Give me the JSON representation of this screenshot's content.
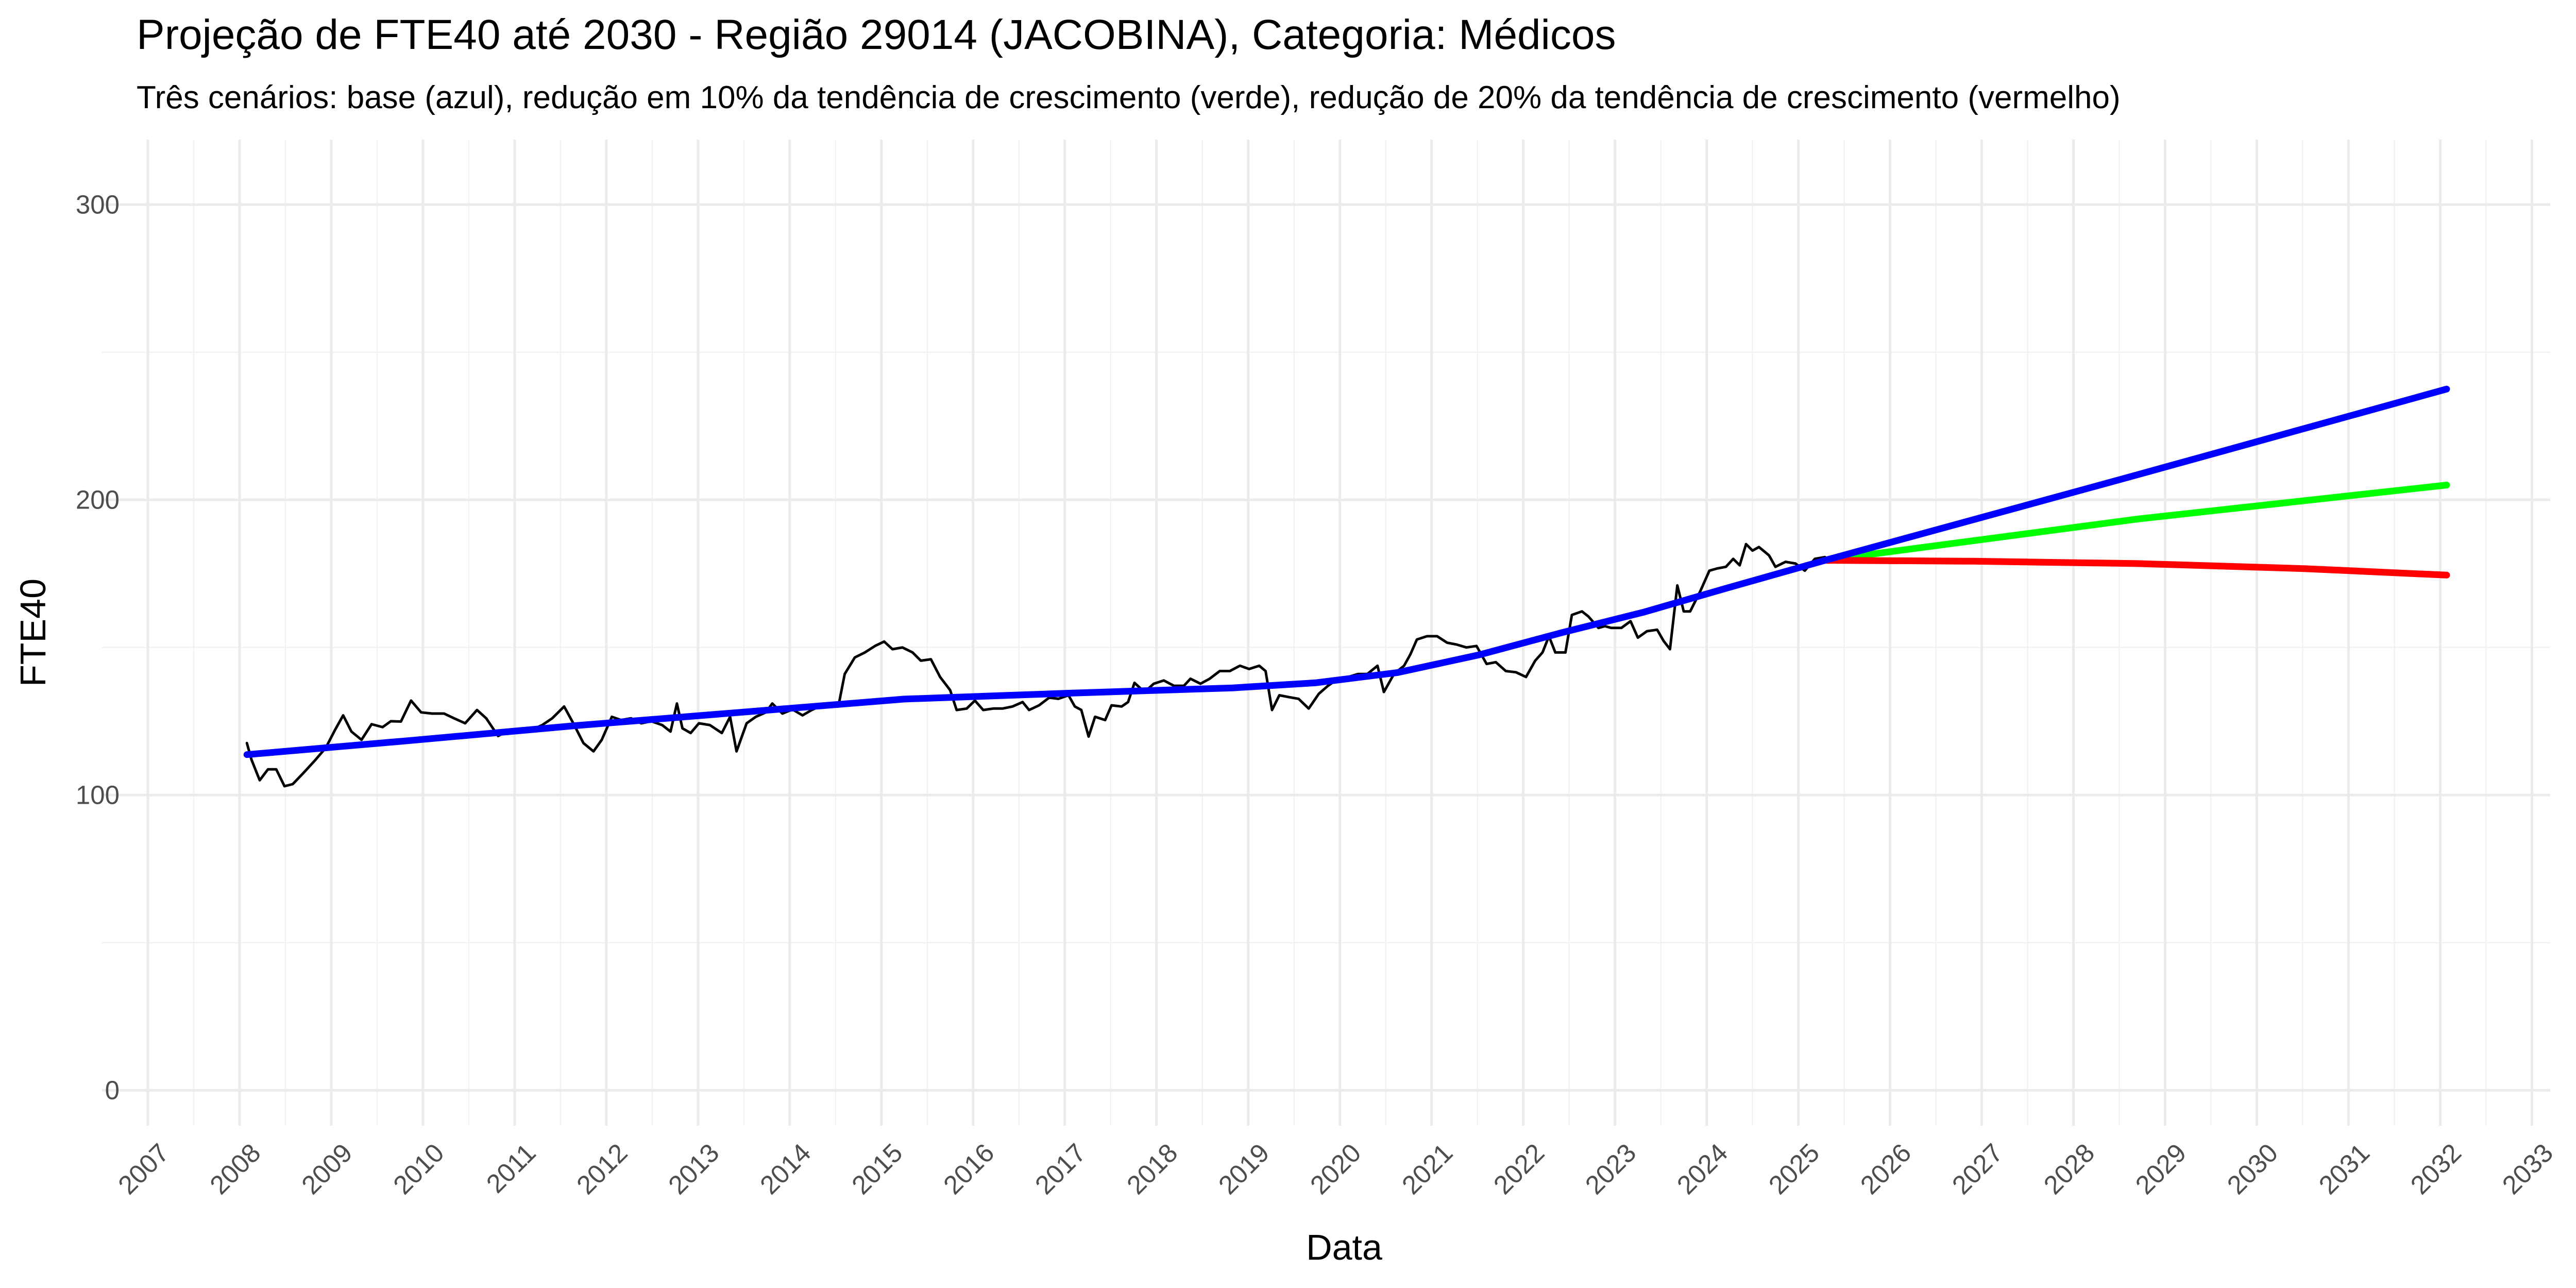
{
  "chart_data": {
    "type": "line",
    "title": "Projeção de FTE40 até 2030 - Região 29014 (JACOBINA), Categoria: Médicos",
    "subtitle": "Três cenários: base (azul), redução em 10% da tendência de crescimento (verde), redução de 20% da tendência de crescimento (vermelho)",
    "x_label": "Data",
    "y_label": "FTE40",
    "xlim": [
      2006.5,
      2033.2
    ],
    "ylim": [
      -12,
      322
    ],
    "xticks": [
      2007,
      2008,
      2009,
      2010,
      2011,
      2012,
      2013,
      2014,
      2015,
      2016,
      2017,
      2018,
      2019,
      2020,
      2021,
      2022,
      2023,
      2024,
      2025,
      2026,
      2027,
      2028,
      2029,
      2030,
      2031,
      2032,
      2033
    ],
    "xminor": [
      2007.5,
      2008.5,
      2009.5,
      2010.5,
      2011.5,
      2012.5,
      2013.5,
      2014.5,
      2015.5,
      2016.5,
      2017.5,
      2018.5,
      2019.5,
      2020.5,
      2021.5,
      2022.5,
      2023.5,
      2024.5,
      2025.5,
      2026.5,
      2027.5,
      2028.5,
      2029.5,
      2030.5,
      2031.5,
      2032.5
    ],
    "yticks": [
      0,
      100,
      200,
      300
    ],
    "yminor": [
      50,
      150,
      250
    ],
    "grid": true,
    "series": [
      {
        "color": "#000000",
        "x": [
          2008.08,
          2008.13,
          2008.22,
          2008.31,
          2008.4,
          2008.49,
          2008.58,
          2008.7,
          2008.83,
          2008.94,
          2009.04,
          2009.13,
          2009.22,
          2009.33,
          2009.44,
          2009.56,
          2009.65,
          2009.76,
          2009.87,
          2009.98,
          2010.1,
          2010.23,
          2010.34,
          2010.46,
          2010.59,
          2010.69,
          2010.82,
          2010.94,
          2011.05,
          2011.18,
          2011.3,
          2011.41,
          2011.54,
          2011.64,
          2011.75,
          2011.86,
          2011.95,
          2012.06,
          2012.16,
          2012.27,
          2012.38,
          2012.49,
          2012.61,
          2012.7,
          2012.77,
          2012.83,
          2012.92,
          2013.01,
          2013.13,
          2013.26,
          2013.35,
          2013.42,
          2013.53,
          2013.63,
          2013.74,
          2013.81,
          2013.92,
          2014.03,
          2014.14,
          2014.24,
          2014.35,
          2014.46,
          2014.53,
          2014.6,
          2014.71,
          2014.82,
          2014.93,
          2015.03,
          2015.12,
          2015.23,
          2015.34,
          2015.43,
          2015.54,
          2015.64,
          2015.75,
          2015.82,
          2015.93,
          2016.02,
          2016.11,
          2016.22,
          2016.32,
          2016.43,
          2016.54,
          2016.61,
          2016.72,
          2016.83,
          2016.93,
          2017.04,
          2017.11,
          2017.18,
          2017.26,
          2017.33,
          2017.44,
          2017.51,
          2017.62,
          2017.69,
          2017.76,
          2017.87,
          2017.97,
          2018.08,
          2018.19,
          2018.3,
          2018.37,
          2018.48,
          2018.58,
          2018.69,
          2018.8,
          2018.91,
          2019.01,
          2019.12,
          2019.19,
          2019.26,
          2019.34,
          2019.44,
          2019.55,
          2019.66,
          2019.77,
          2019.87,
          2019.98,
          2020.09,
          2020.2,
          2020.3,
          2020.41,
          2020.48,
          2020.59,
          2020.7,
          2020.77,
          2020.84,
          2020.95,
          2021.06,
          2021.17,
          2021.27,
          2021.38,
          2021.49,
          2021.6,
          2021.7,
          2021.81,
          2021.92,
          2022.03,
          2022.13,
          2022.21,
          2022.28,
          2022.35,
          2022.46,
          2022.53,
          2022.64,
          2022.71,
          2022.82,
          2022.89,
          2022.96,
          2023.07,
          2023.17,
          2023.25,
          2023.35,
          2023.46,
          2023.53,
          2023.6,
          2023.68,
          2023.75,
          2023.82,
          2023.93,
          2024.03,
          2024.11,
          2024.21,
          2024.29,
          2024.36,
          2024.43,
          2024.5,
          2024.57,
          2024.68,
          2024.75,
          2024.86,
          2024.97,
          2025.07,
          2025.18,
          2025.29
        ],
        "values": [
          117.6,
          112,
          105,
          108.7,
          108.7,
          103,
          103.7,
          107.6,
          112,
          116,
          122,
          127,
          121.5,
          118.7,
          124,
          123,
          125,
          124.9,
          132,
          128,
          127.6,
          127.6,
          126,
          124.3,
          128.8,
          126,
          120,
          122,
          121.5,
          122,
          123.7,
          126,
          130,
          124.3,
          117.6,
          114.8,
          118.7,
          126.5,
          125.4,
          126,
          124.3,
          125,
          123.7,
          121.5,
          131,
          122.6,
          121,
          124.3,
          123.7,
          121,
          126.5,
          114.8,
          124.3,
          126.5,
          128,
          131,
          127.6,
          129,
          127,
          128.8,
          130.4,
          130.4,
          130,
          141,
          146.6,
          148.3,
          150.5,
          152,
          149.4,
          150,
          148.3,
          145.5,
          146,
          140,
          135.5,
          128.8,
          129.3,
          132,
          128.8,
          129.3,
          129.3,
          130,
          131.5,
          128.8,
          130.4,
          133,
          132.6,
          133.8,
          130,
          128.8,
          119.8,
          126.5,
          125.4,
          130.4,
          130,
          131.5,
          138,
          134.9,
          137.7,
          138.8,
          137,
          137,
          139.4,
          137.7,
          139.4,
          142,
          142,
          143.8,
          142.7,
          143.8,
          142,
          128.8,
          133.8,
          133.2,
          132.6,
          129.3,
          134.3,
          137,
          139.4,
          140,
          141,
          141,
          143.8,
          134.9,
          141,
          143.8,
          147.7,
          152.7,
          153.8,
          153.8,
          151.6,
          151,
          150,
          150.5,
          144.4,
          145,
          142,
          141.6,
          140,
          145.5,
          148.3,
          153.8,
          148.3,
          148.3,
          161,
          162.2,
          160.5,
          156.6,
          157.2,
          156.6,
          156.6,
          158.9,
          153.3,
          155.5,
          156,
          152.2,
          149.4,
          171,
          162.2,
          162.2,
          169,
          176,
          176.7,
          177.3,
          180,
          177.8,
          185,
          182.8,
          184,
          181.2,
          177.3,
          179,
          178.4,
          176,
          180,
          180.6
        ]
      },
      {
        "color": "#00ff00",
        "x": [
          2025.29,
          2028.7,
          2032.07
        ],
        "values": [
          179.5,
          193.5,
          205
        ]
      },
      {
        "color": "#ff0000",
        "x": [
          2025.29,
          2026.9,
          2028.7,
          2030.5,
          2032.07
        ],
        "values": [
          179.5,
          179.2,
          178.4,
          176.7,
          174.5
        ]
      },
      {
        "color": "#0000ff",
        "x": [
          2008.08,
          2009.87,
          2011.66,
          2013.46,
          2015.25,
          2017.04,
          2018.83,
          2019.73,
          2020.63,
          2021.52,
          2022.42,
          2023.32,
          2024.21,
          2025.29,
          2028.7,
          2032.07
        ],
        "values": [
          113.7,
          118.5,
          123.5,
          128,
          132.5,
          134.5,
          136.3,
          138,
          141.5,
          147.5,
          155,
          162,
          170,
          179.5,
          208.5,
          237.5
        ]
      }
    ]
  }
}
